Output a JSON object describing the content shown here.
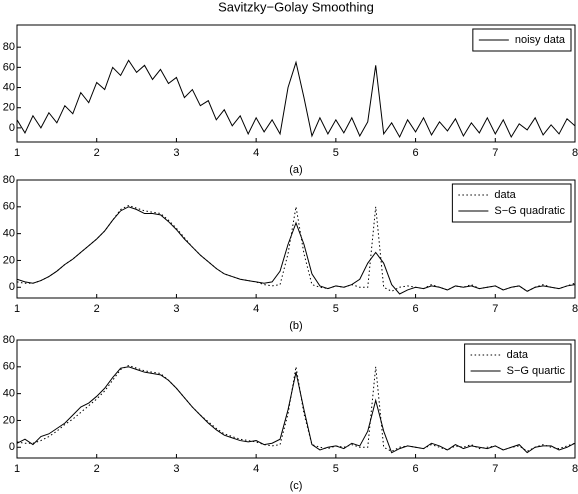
{
  "chart_data": [
    {
      "type": "line",
      "title": "Savitzky−Golay Smoothing",
      "xlabel": "(a)",
      "xlim": [
        1,
        8
      ],
      "xticks": [
        1,
        2,
        3,
        4,
        5,
        6,
        7,
        8
      ],
      "ylim": [
        -14,
        102
      ],
      "yticks": [
        0,
        20,
        40,
        60,
        80
      ],
      "legend": "upper right",
      "x": [
        1.0,
        1.1,
        1.2,
        1.3,
        1.4,
        1.5,
        1.6,
        1.7,
        1.8,
        1.9,
        2.0,
        2.1,
        2.2,
        2.3,
        2.4,
        2.5,
        2.6,
        2.7,
        2.8,
        2.9,
        3.0,
        3.1,
        3.2,
        3.3,
        3.4,
        3.5,
        3.6,
        3.7,
        3.8,
        3.9,
        4.0,
        4.1,
        4.2,
        4.3,
        4.4,
        4.5,
        4.6,
        4.7,
        4.8,
        4.9,
        5.0,
        5.1,
        5.2,
        5.3,
        5.4,
        5.5,
        5.6,
        5.7,
        5.8,
        5.9,
        6.0,
        6.1,
        6.2,
        6.3,
        6.4,
        6.5,
        6.6,
        6.7,
        6.8,
        6.9,
        7.0,
        7.1,
        7.2,
        7.3,
        7.4,
        7.5,
        7.6,
        7.7,
        7.8,
        7.9,
        8.0
      ],
      "series": [
        {
          "name": "noisy data",
          "color": "#000000",
          "style": "solid",
          "values": [
            8,
            -5,
            12,
            0,
            15,
            5,
            22,
            14,
            35,
            25,
            45,
            38,
            60,
            52,
            67,
            55,
            62,
            48,
            58,
            44,
            50,
            30,
            38,
            22,
            27,
            8,
            18,
            2,
            12,
            -6,
            10,
            -4,
            8,
            -6,
            40,
            65,
            30,
            -8,
            10,
            -6,
            8,
            -5,
            10,
            -8,
            6,
            62,
            -6,
            5,
            -9,
            8,
            -4,
            10,
            -7,
            6,
            -3,
            9,
            -8,
            5,
            -5,
            10,
            -6,
            8,
            -9,
            4,
            -2,
            10,
            -7,
            3,
            -6,
            9,
            2
          ]
        }
      ]
    },
    {
      "type": "line",
      "xlabel": "(b)",
      "xlim": [
        1,
        8
      ],
      "xticks": [
        1,
        2,
        3,
        4,
        5,
        6,
        7,
        8
      ],
      "ylim": [
        -8,
        80
      ],
      "yticks": [
        0,
        20,
        40,
        60,
        80
      ],
      "legend": "upper right",
      "x": [
        1.0,
        1.1,
        1.2,
        1.3,
        1.4,
        1.5,
        1.6,
        1.7,
        1.8,
        1.9,
        2.0,
        2.1,
        2.2,
        2.3,
        2.4,
        2.5,
        2.6,
        2.7,
        2.8,
        2.9,
        3.0,
        3.1,
        3.2,
        3.3,
        3.4,
        3.5,
        3.6,
        3.7,
        3.8,
        3.9,
        4.0,
        4.1,
        4.2,
        4.3,
        4.4,
        4.5,
        4.6,
        4.7,
        4.8,
        4.9,
        5.0,
        5.1,
        5.2,
        5.3,
        5.4,
        5.5,
        5.6,
        5.7,
        5.8,
        5.9,
        6.0,
        6.1,
        6.2,
        6.3,
        6.4,
        6.5,
        6.6,
        6.7,
        6.8,
        6.9,
        7.0,
        7.1,
        7.2,
        7.3,
        7.4,
        7.5,
        7.6,
        7.7,
        7.8,
        7.9,
        8.0
      ],
      "series": [
        {
          "name": "data",
          "color": "#000000",
          "style": "dotted",
          "values": [
            4,
            3,
            3,
            5,
            8,
            12,
            17,
            21,
            26,
            31,
            36,
            42,
            50,
            58,
            61,
            59,
            57,
            56,
            55,
            50,
            44,
            37,
            30,
            24,
            19,
            14,
            10,
            8,
            6,
            5,
            4,
            2,
            1,
            2,
            25,
            60,
            25,
            2,
            0,
            -1,
            1,
            0,
            2,
            0,
            0,
            60,
            0,
            -3,
            0,
            1,
            0,
            -1,
            2,
            0,
            -2,
            1,
            0,
            2,
            -1,
            0,
            1,
            -2,
            0,
            1,
            -3,
            0,
            2,
            0,
            -1,
            1,
            3
          ]
        },
        {
          "name": "S−G quadratic",
          "color": "#000000",
          "style": "solid",
          "values": [
            6,
            4,
            3,
            5,
            8,
            12,
            17,
            21,
            26,
            31,
            36,
            42,
            50,
            57,
            60,
            58,
            55,
            55,
            54,
            49,
            43,
            36,
            30,
            24,
            19,
            14,
            10,
            8,
            6,
            5,
            4,
            3,
            4,
            12,
            32,
            48,
            32,
            10,
            1,
            -1,
            1,
            0,
            2,
            6,
            18,
            26,
            18,
            2,
            -5,
            -2,
            0,
            -1,
            1,
            0,
            -2,
            1,
            0,
            1,
            -1,
            0,
            1,
            -2,
            0,
            1,
            -3,
            0,
            1,
            0,
            -1,
            1,
            2
          ]
        }
      ]
    },
    {
      "type": "line",
      "xlabel": "(c)",
      "xlim": [
        1,
        8
      ],
      "xticks": [
        1,
        2,
        3,
        4,
        5,
        6,
        7,
        8
      ],
      "ylim": [
        -8,
        80
      ],
      "yticks": [
        0,
        20,
        40,
        60,
        80
      ],
      "legend": "upper right",
      "x": [
        1.0,
        1.1,
        1.2,
        1.3,
        1.4,
        1.5,
        1.6,
        1.7,
        1.8,
        1.9,
        2.0,
        2.1,
        2.2,
        2.3,
        2.4,
        2.5,
        2.6,
        2.7,
        2.8,
        2.9,
        3.0,
        3.1,
        3.2,
        3.3,
        3.4,
        3.5,
        3.6,
        3.7,
        3.8,
        3.9,
        4.0,
        4.1,
        4.2,
        4.3,
        4.4,
        4.5,
        4.6,
        4.7,
        4.8,
        4.9,
        5.0,
        5.1,
        5.2,
        5.3,
        5.4,
        5.5,
        5.6,
        5.7,
        5.8,
        5.9,
        6.0,
        6.1,
        6.2,
        6.3,
        6.4,
        6.5,
        6.6,
        6.7,
        6.8,
        6.9,
        7.0,
        7.1,
        7.2,
        7.3,
        7.4,
        7.5,
        7.6,
        7.7,
        7.8,
        7.9,
        8.0
      ],
      "series": [
        {
          "name": "data",
          "color": "#000000",
          "style": "dotted",
          "values": [
            4,
            3,
            3,
            5,
            8,
            12,
            17,
            21,
            26,
            31,
            36,
            42,
            50,
            58,
            61,
            59,
            57,
            56,
            55,
            50,
            44,
            37,
            30,
            24,
            19,
            14,
            10,
            8,
            6,
            5,
            4,
            2,
            1,
            2,
            25,
            60,
            25,
            2,
            0,
            -1,
            1,
            0,
            2,
            0,
            0,
            60,
            0,
            -3,
            0,
            1,
            0,
            -1,
            2,
            0,
            -2,
            1,
            0,
            2,
            -1,
            0,
            1,
            -2,
            0,
            1,
            -3,
            0,
            2,
            0,
            -1,
            1,
            3
          ]
        },
        {
          "name": "S−G quartic",
          "color": "#000000",
          "style": "solid",
          "values": [
            3,
            6,
            2,
            8,
            10,
            14,
            18,
            24,
            30,
            33,
            38,
            44,
            52,
            59,
            60,
            58,
            56,
            55,
            54,
            50,
            44,
            37,
            30,
            24,
            18,
            13,
            9,
            7,
            5,
            4,
            5,
            2,
            3,
            6,
            28,
            56,
            28,
            2,
            -2,
            0,
            1,
            -1,
            3,
            1,
            12,
            35,
            12,
            -4,
            -1,
            1,
            0,
            -1,
            3,
            1,
            -2,
            2,
            -1,
            1,
            0,
            -1,
            1,
            -2,
            0,
            2,
            -4,
            0,
            1,
            1,
            -2,
            0,
            3
          ]
        }
      ]
    }
  ]
}
